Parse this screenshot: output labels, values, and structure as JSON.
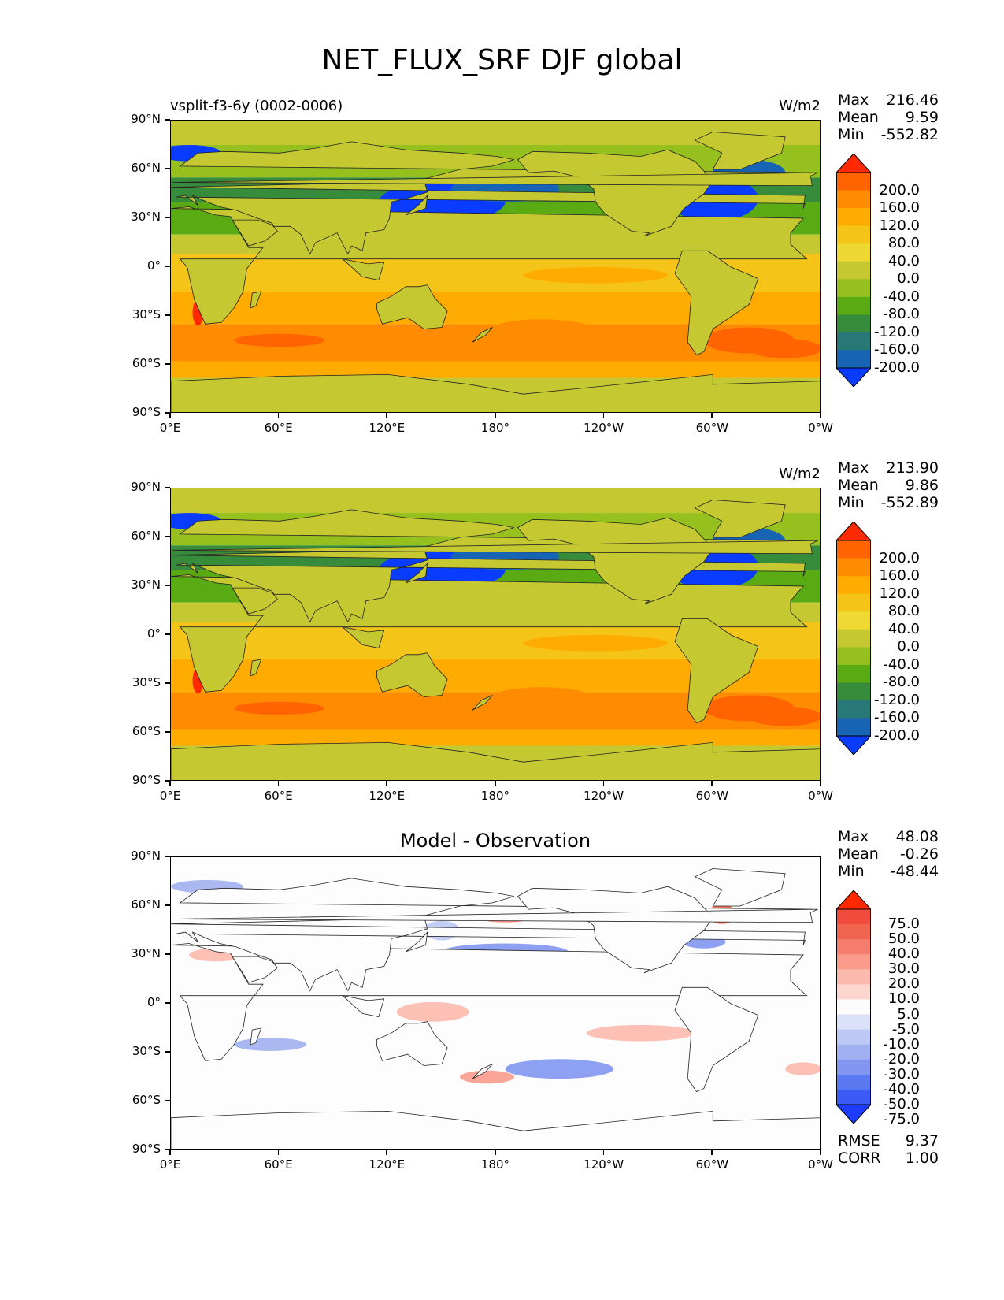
{
  "title": "NET_FLUX_SRF DJF global",
  "axes": {
    "y_ticks": [
      "90°N",
      "60°N",
      "30°N",
      "0°",
      "30°S",
      "60°S",
      "90°S"
    ],
    "x_ticks": [
      "0°E",
      "60°E",
      "120°E",
      "180°",
      "120°W",
      "60°W",
      "0°W"
    ]
  },
  "panels": [
    {
      "left_title": "vsplit-f3-6y (0002-0006)",
      "center_title": "",
      "units": "W/m2",
      "stats": [
        {
          "label": "Max",
          "value": "216.46"
        },
        {
          "label": "Mean",
          "value": "9.59"
        },
        {
          "label": "Min",
          "value": "-552.82"
        }
      ],
      "cbar_labels": [
        "200.0",
        "160.0",
        "120.0",
        "80.0",
        "40.0",
        "0.0",
        "-40.0",
        "-80.0",
        "-120.0",
        "-160.0",
        "-200.0"
      ],
      "cbar_colors": [
        "#ff2a00",
        "#ff6400",
        "#ff8c00",
        "#ffab00",
        "#f4c418",
        "#f0d832",
        "#c6c832",
        "#96c01e",
        "#5aaa14",
        "#378c3c",
        "#287878",
        "#1864b4",
        "#0a3cff"
      ]
    },
    {
      "left_title": "",
      "center_title": "",
      "units": "W/m2",
      "stats": [
        {
          "label": "Max",
          "value": "213.90"
        },
        {
          "label": "Mean",
          "value": "9.86"
        },
        {
          "label": "Min",
          "value": "-552.89"
        }
      ],
      "cbar_labels": [
        "200.0",
        "160.0",
        "120.0",
        "80.0",
        "40.0",
        "0.0",
        "-40.0",
        "-80.0",
        "-120.0",
        "-160.0",
        "-200.0"
      ],
      "cbar_colors": [
        "#ff2a00",
        "#ff6400",
        "#ff8c00",
        "#ffab00",
        "#f4c418",
        "#f0d832",
        "#c6c832",
        "#96c01e",
        "#5aaa14",
        "#378c3c",
        "#287878",
        "#1864b4",
        "#0a3cff"
      ]
    },
    {
      "left_title": "",
      "center_title": "Model - Observation",
      "units": "",
      "stats": [
        {
          "label": "Max",
          "value": "48.08"
        },
        {
          "label": "Mean",
          "value": "-0.26"
        },
        {
          "label": "Min",
          "value": "-48.44"
        }
      ],
      "cbar_labels": [
        "75.0",
        "50.0",
        "40.0",
        "30.0",
        "20.0",
        "10.0",
        "5.0",
        "-5.0",
        "-10.0",
        "-20.0",
        "-30.0",
        "-40.0",
        "-50.0",
        "-75.0"
      ],
      "cbar_colors": [
        "#ff2800",
        "#f04b3c",
        "#f06450",
        "#f57d6e",
        "#fa9b8c",
        "#fcb9ad",
        "#fdd7cf",
        "#fcfcfc",
        "#dce1fa",
        "#bec8f5",
        "#a0b0f0",
        "#8296f0",
        "#5a78f0",
        "#3c5af5",
        "#1e3cff"
      ],
      "footer": [
        {
          "label": "RMSE",
          "value": "9.37"
        },
        {
          "label": "CORR",
          "value": "1.00"
        }
      ]
    }
  ],
  "chart_data": [
    {
      "type": "heatmap",
      "title": "vsplit-f3-6y (0002-0006)",
      "units": "W/m2",
      "xlim": [
        0,
        360
      ],
      "ylim": [
        -90,
        90
      ],
      "color_levels": [
        -200,
        -160,
        -120,
        -80,
        -40,
        0,
        40,
        80,
        120,
        160,
        200
      ],
      "max": 216.46,
      "mean": 9.59,
      "min": -552.82
    },
    {
      "type": "heatmap",
      "title": "",
      "units": "W/m2",
      "xlim": [
        0,
        360
      ],
      "ylim": [
        -90,
        90
      ],
      "color_levels": [
        -200,
        -160,
        -120,
        -80,
        -40,
        0,
        40,
        80,
        120,
        160,
        200
      ],
      "max": 213.9,
      "mean": 9.86,
      "min": -552.89
    },
    {
      "type": "heatmap",
      "title": "Model - Observation",
      "xlim": [
        0,
        360
      ],
      "ylim": [
        -90,
        90
      ],
      "color_levels": [
        -75,
        -50,
        -40,
        -30,
        -20,
        -10,
        -5,
        5,
        10,
        20,
        30,
        40,
        50,
        75
      ],
      "max": 48.08,
      "mean": -0.26,
      "min": -48.44,
      "rmse": 9.37,
      "corr": 1.0
    }
  ]
}
